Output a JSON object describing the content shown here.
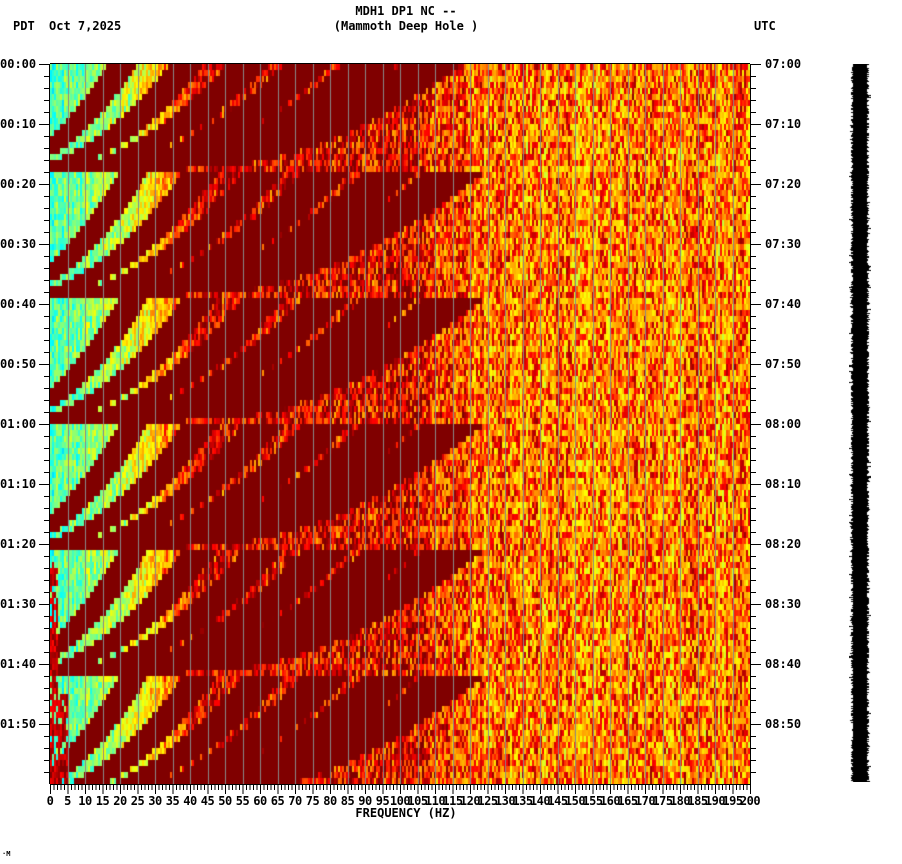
{
  "header": {
    "station": "MDH1 DP1 NC --",
    "site": "(Mammoth Deep Hole )",
    "tz_left": "PDT",
    "date": "Oct 7,2025",
    "tz_right": "UTC"
  },
  "footer": {
    "mark": "·M"
  },
  "chart_data": {
    "type": "heatmap",
    "title": "MDH1 DP1 NC -- (Mammoth Deep Hole )",
    "subtitle": "PDT Oct 7,2025",
    "xlabel": "FREQUENCY (HZ)",
    "ylabel_left": "PDT",
    "ylabel_right": "UTC",
    "xlim": [
      0,
      200
    ],
    "x_ticks": [
      "0",
      "5",
      "10",
      "15",
      "20",
      "25",
      "30",
      "35",
      "40",
      "45",
      "50",
      "55",
      "60",
      "65",
      "70",
      "75",
      "80",
      "85",
      "90",
      "95",
      "100",
      "105",
      "110",
      "115",
      "120",
      "125",
      "130",
      "135",
      "140",
      "145",
      "150",
      "155",
      "160",
      "165",
      "170",
      "175",
      "180",
      "185",
      "190",
      "195",
      "200"
    ],
    "x_gridlines_every_hz": 5,
    "y_ticks_left": [
      "00:00",
      "00:10",
      "00:20",
      "00:30",
      "00:40",
      "00:50",
      "01:00",
      "01:10",
      "01:20",
      "01:30",
      "01:40",
      "01:50"
    ],
    "y_ticks_right": [
      "07:00",
      "07:10",
      "07:20",
      "07:30",
      "07:40",
      "07:50",
      "08:00",
      "08:10",
      "08:20",
      "08:30",
      "08:40",
      "08:50"
    ],
    "y_minor_tick_minutes": 2,
    "duration_minutes": 120,
    "colormap": [
      "#0000ff",
      "#00a0ff",
      "#00ffff",
      "#80ff80",
      "#ffff00",
      "#ffa000",
      "#ff0000",
      "#800000"
    ],
    "features": {
      "low_freq_band_hz": [
        0,
        20
      ],
      "low_freq_level": "blue-cyan (low power)",
      "high_power_band_hz": [
        45,
        125
      ],
      "high_power_level": "dark red (saturated)",
      "upper_band_hz": [
        125,
        200
      ],
      "upper_band_level": "orange-yellow-red mixed",
      "sweep_repeat_minutes": 21,
      "sweep_start_minutes": [
        -3,
        18,
        39,
        60,
        81,
        102
      ],
      "sweep_harmonics_start_hz": [
        23,
        42,
        60,
        78,
        96,
        114
      ],
      "sweep_description": "Repeating upward-curving chirp arcs (dark red) starting near 20-25 Hz and sweeping to higher frequency over ~18 min, with harmonics",
      "low_freq_energy_burst_minutes": [
        83,
        120
      ],
      "low_freq_burst_hz": [
        0,
        5
      ],
      "spectral_line_hz": 60
    },
    "seismogram_trace": "black continuous trace on right, 00:00 to 02:00"
  }
}
